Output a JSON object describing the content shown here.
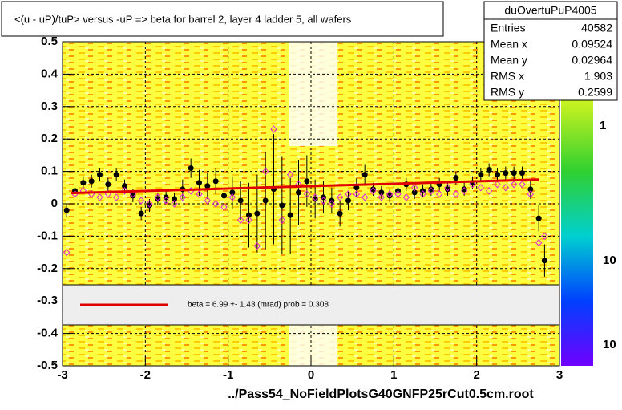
{
  "chart_data": {
    "type": "profile",
    "title": "<(u - uP)/tuP> versus  -uP => beta for barrel 2, layer 4 ladder 5, all wafers",
    "x_label": "../Pass54_NoFieldPlotsG40GNFP25rCut0.5cm.root",
    "stats": {
      "name": "duOvertuPuP4005",
      "rows": [
        [
          "Entries",
          "40582"
        ],
        [
          "Mean x",
          "0.09524"
        ],
        [
          "Mean y",
          "0.02964"
        ],
        [
          "RMS x",
          "1.903"
        ],
        [
          "RMS y",
          "0.2599"
        ]
      ]
    },
    "legend_text": "beta =    6.99 +-  1.43 (mrad) prob = 0.308",
    "colorbar_labels": [
      "1",
      "10",
      "10"
    ],
    "xlim": [
      -3,
      3
    ],
    "xticks": [
      -3,
      -2,
      -1,
      0,
      1,
      2,
      3
    ],
    "ylim": [
      -0.5,
      0.5
    ],
    "yticks": [
      -0.5,
      -0.4,
      -0.3,
      -0.2,
      -0.1,
      0,
      0.1,
      0.2,
      0.3,
      0.4,
      0.5
    ],
    "grid": true,
    "x": [
      -2.95,
      -2.85,
      -2.75,
      -2.65,
      -2.55,
      -2.45,
      -2.35,
      -2.25,
      -2.15,
      -2.05,
      -1.95,
      -1.85,
      -1.75,
      -1.65,
      -1.55,
      -1.45,
      -1.35,
      -1.25,
      -1.15,
      -1.05,
      -0.95,
      -0.85,
      -0.75,
      -0.65,
      -0.55,
      -0.45,
      -0.35,
      -0.25,
      -0.15,
      -0.05,
      0.05,
      0.15,
      0.25,
      0.35,
      0.45,
      0.55,
      0.65,
      0.75,
      0.85,
      0.95,
      1.05,
      1.15,
      1.25,
      1.35,
      1.45,
      1.55,
      1.65,
      1.75,
      1.85,
      1.95,
      2.05,
      2.15,
      2.25,
      2.35,
      2.45,
      2.55,
      2.65,
      2.75,
      2.82
    ],
    "series": [
      {
        "name": "profile",
        "color": "#000000",
        "marker": "dot",
        "values": [
          -0.02,
          0.04,
          0.065,
          0.07,
          0.09,
          0.06,
          0.09,
          0.055,
          0.025,
          -0.03,
          -0.005,
          0.015,
          0.02,
          0.015,
          0.045,
          0.11,
          0.065,
          0.055,
          0.07,
          0.025,
          0.035,
          0.01,
          -0.035,
          -0.03,
          0.01,
          0.045,
          -0.005,
          -0.035,
          0.035,
          0.07,
          0.015,
          0.02,
          0.01,
          -0.03,
          0.01,
          0.05,
          0.09,
          0.045,
          0.035,
          0.025,
          0.04,
          0.06,
          0.035,
          0.04,
          0.045,
          0.06,
          0.045,
          0.08,
          0.045,
          0.065,
          0.09,
          0.105,
          0.09,
          0.095,
          0.095,
          0.095,
          0.045,
          -0.045,
          -0.175
        ],
        "errors": [
          0.02,
          0.02,
          0.02,
          0.02,
          0.02,
          0.02,
          0.02,
          0.02,
          0.02,
          0.02,
          0.02,
          0.02,
          0.02,
          0.02,
          0.03,
          0.03,
          0.04,
          0.04,
          0.04,
          0.04,
          0.05,
          0.06,
          0.1,
          0.12,
          0.15,
          0.17,
          0.15,
          0.12,
          0.1,
          0.08,
          0.06,
          0.05,
          0.04,
          0.04,
          0.03,
          0.03,
          0.03,
          0.02,
          0.02,
          0.02,
          0.02,
          0.02,
          0.02,
          0.02,
          0.02,
          0.02,
          0.02,
          0.02,
          0.02,
          0.02,
          0.02,
          0.02,
          0.02,
          0.02,
          0.02,
          0.02,
          0.03,
          0.04,
          0.05
        ]
      },
      {
        "name": "wafer",
        "color": "#e020e0",
        "marker": "diamond",
        "values": [
          -0.15,
          0.03,
          0.04,
          0.03,
          0.02,
          0.03,
          0.02,
          0.04,
          0.03,
          0.01,
          0.0,
          0.02,
          0.01,
          0.0,
          0.02,
          0.04,
          0.03,
          0.01,
          0.0,
          -0.01,
          0.02,
          -0.05,
          -0.05,
          -0.13,
          0.1,
          0.23,
          -0.05,
          0.09,
          0.06,
          0.03,
          0.02,
          0.01,
          0.0,
          0.02,
          0.03,
          0.03,
          0.02,
          0.04,
          0.02,
          0.03,
          0.03,
          0.02,
          0.05,
          0.03,
          0.04,
          0.03,
          0.05,
          0.03,
          0.04,
          0.06,
          0.05,
          0.04,
          0.06,
          0.05,
          0.06,
          0.06,
          0.03,
          -0.12,
          -0.1
        ]
      }
    ],
    "fit": {
      "color": "#e00000",
      "x": [
        -2.9,
        2.75
      ],
      "y": [
        0.033,
        0.075
      ]
    }
  }
}
